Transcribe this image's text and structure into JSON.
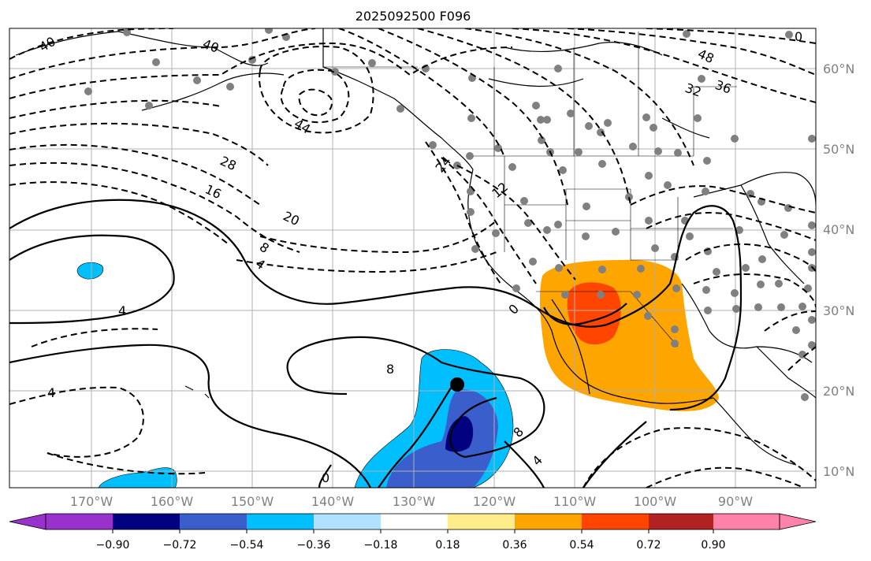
{
  "title": "2025092500 F096",
  "colors": {
    "neg_090": "#9932cc",
    "neg_072_090": "#000080",
    "neg_054_072": "#3a5fcd",
    "neg_036_054": "#00bfff",
    "neg_018_036": "#b0e2ff",
    "neutral": "#ffffff",
    "pos_018_036": "#ffec8b",
    "pos_036_054": "#ffa500",
    "pos_054_072": "#ff4500",
    "pos_072_090": "#b22222",
    "pos_090": "#ff82ab",
    "station": "#808080",
    "grid": "#b0b0b0",
    "coast": "#000000"
  },
  "lat_labels": [
    "60°N",
    "50°N",
    "40°N",
    "30°N",
    "20°N",
    "10°N"
  ],
  "lon_labels": [
    "170°W",
    "160°W",
    "150°W",
    "140°W",
    "130°W",
    "120°W",
    "110°W",
    "100°W",
    "90°W"
  ],
  "colorbar": {
    "tick_labels": [
      "−0.90",
      "−0.72",
      "−0.54",
      "−0.36",
      "−0.18",
      "0.18",
      "0.36",
      "0.54",
      "0.72",
      "0.90"
    ]
  },
  "contour_labels": [
    "40",
    "40",
    "44",
    "28",
    "16",
    "20",
    "8",
    "4",
    "24",
    "12",
    "4",
    "0",
    "8",
    "4",
    "8",
    "0",
    "4",
    "48",
    "32",
    "36",
    "0"
  ]
}
